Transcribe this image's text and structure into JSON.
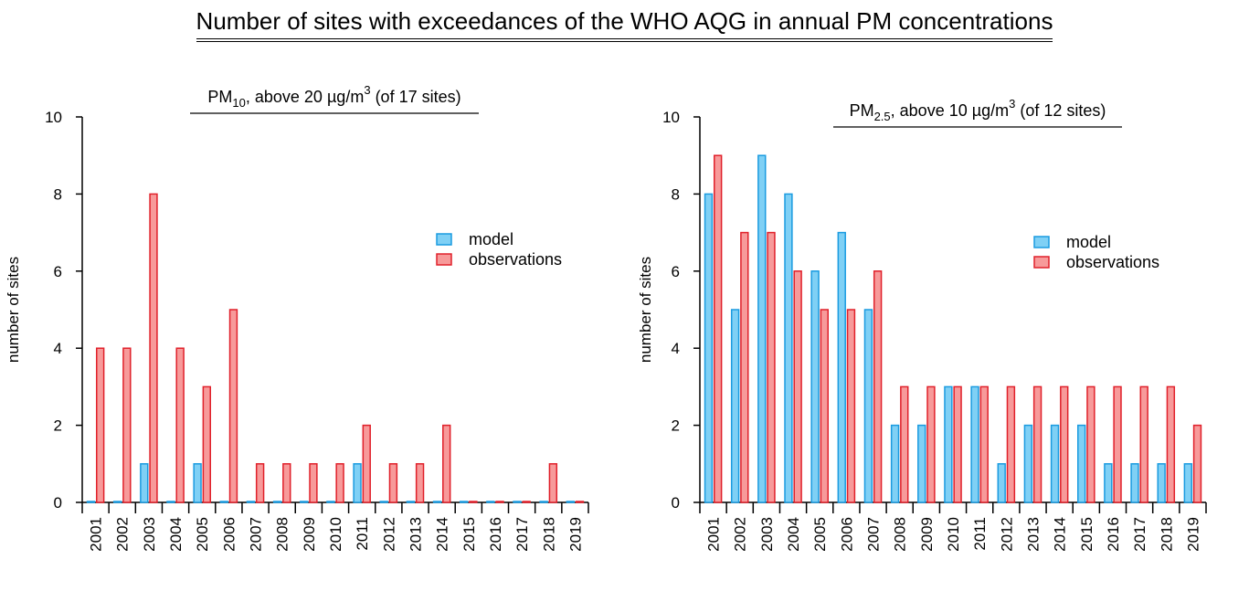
{
  "title": "Number of sites with exceedances of the WHO AQG in annual PM concentrations",
  "colors": {
    "model_fill": "#7fd0f5",
    "model_stroke": "#1a9be0",
    "obs_fill": "#f79a9a",
    "obs_stroke": "#e0202a"
  },
  "chart_data": [
    {
      "type": "bar",
      "title": {
        "prefix": "PM",
        "sub": "10",
        "mid": ", above 20 ",
        "unit": "µg/m",
        "sup": "3",
        "suffix": " (of 17 sites)"
      },
      "ylabel": "number of sites",
      "ylim": [
        0,
        10
      ],
      "yticks": [
        "0",
        "2",
        "4",
        "6",
        "8",
        "10"
      ],
      "legend": [
        "model",
        "observations"
      ],
      "categories": [
        "2001",
        "2002",
        "2003",
        "2004",
        "2005",
        "2006",
        "2007",
        "2008",
        "2009",
        "2010",
        "2011",
        "2012",
        "2013",
        "2014",
        "2015",
        "2016",
        "2017",
        "2018",
        "2019"
      ],
      "series": [
        {
          "name": "model",
          "values": [
            0,
            0,
            1,
            0,
            1,
            0,
            0,
            0,
            0,
            0,
            1,
            0,
            0,
            0,
            0,
            0,
            0,
            0,
            0
          ]
        },
        {
          "name": "observations",
          "values": [
            4,
            4,
            8,
            4,
            3,
            5,
            1,
            1,
            1,
            1,
            2,
            1,
            1,
            2,
            0,
            0,
            0,
            1,
            0
          ]
        }
      ]
    },
    {
      "type": "bar",
      "title": {
        "prefix": "PM",
        "sub": "2.5",
        "mid": ", above 10 ",
        "unit": "µg/m",
        "sup": "3",
        "suffix": " (of 12 sites)"
      },
      "ylabel": "number of  sites",
      "ylim": [
        0,
        10
      ],
      "yticks": [
        "0",
        "2",
        "4",
        "6",
        "8",
        "10"
      ],
      "legend": [
        "model",
        "observations"
      ],
      "categories": [
        "2001",
        "2002",
        "2003",
        "2004",
        "2005",
        "2006",
        "2007",
        "2008",
        "2009",
        "2010",
        "2011",
        "2012",
        "2013",
        "2014",
        "2015",
        "2016",
        "2017",
        "2018",
        "2019"
      ],
      "series": [
        {
          "name": "model",
          "values": [
            8,
            5,
            9,
            8,
            6,
            7,
            5,
            2,
            2,
            3,
            3,
            1,
            2,
            2,
            2,
            1,
            1,
            1,
            1
          ]
        },
        {
          "name": "observations",
          "values": [
            9,
            7,
            7,
            6,
            5,
            5,
            6,
            3,
            3,
            3,
            3,
            3,
            3,
            3,
            3,
            3,
            3,
            3,
            2
          ]
        }
      ]
    }
  ]
}
